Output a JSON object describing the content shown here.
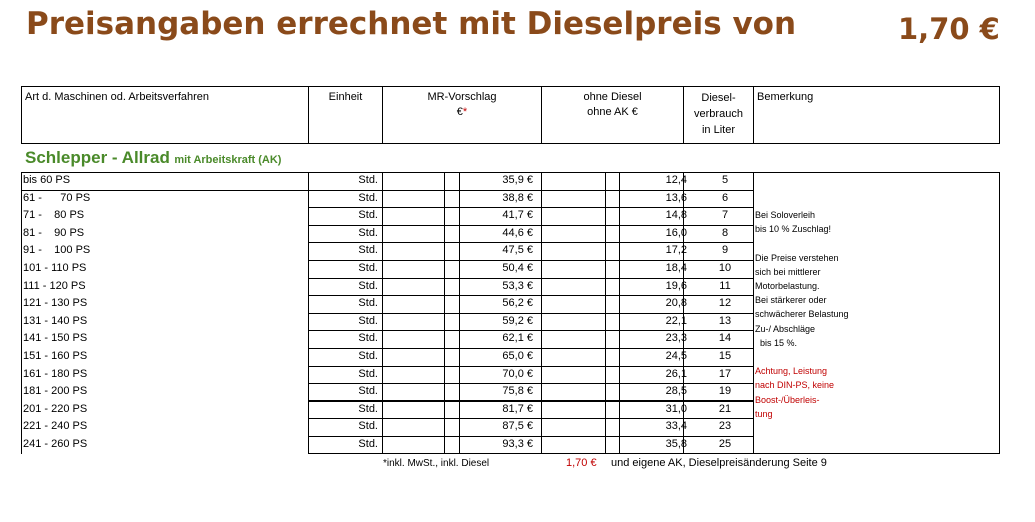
{
  "title": "Preisangaben errechnet mit Dieselpreis von",
  "diesel_price": "1,70 €",
  "header": {
    "machine": "Art d. Maschinen od. Arbeitsverfahren",
    "unit": "Einheit",
    "mr_line1": "MR-Vorschlag",
    "mr_line2_euro": "€",
    "mr_line2_star": "*",
    "ohne_line1": "ohne Diesel",
    "ohne_line2": "ohne AK €",
    "diesel_line1": "Diesel-",
    "diesel_line2": "verbrauch",
    "diesel_line3": "in Liter",
    "remark": "Bemerkung"
  },
  "section": {
    "title": "Schlepper - Allrad",
    "subtitle": "mit Arbeitskraft (AK)"
  },
  "rows": [
    {
      "label": "bis 60 PS",
      "unit": "Std.",
      "mr": "35,9 €",
      "ohne": "12,4",
      "liter": "5"
    },
    {
      "label": "61 -      70 PS",
      "unit": "Std.",
      "mr": "38,8 €",
      "ohne": "13,6",
      "liter": "6"
    },
    {
      "label": "71 -    80 PS",
      "unit": "Std.",
      "mr": "41,7 €",
      "ohne": "14,8",
      "liter": "7"
    },
    {
      "label": "81 -    90 PS",
      "unit": "Std.",
      "mr": "44,6 €",
      "ohne": "16,0",
      "liter": "8"
    },
    {
      "label": "91 -    100 PS",
      "unit": "Std.",
      "mr": "47,5 €",
      "ohne": "17,2",
      "liter": "9"
    },
    {
      "label": "101 - 110 PS",
      "unit": "Std.",
      "mr": "50,4 €",
      "ohne": "18,4",
      "liter": "10"
    },
    {
      "label": "111 - 120 PS",
      "unit": "Std.",
      "mr": "53,3 €",
      "ohne": "19,6",
      "liter": "11"
    },
    {
      "label": "121 - 130 PS",
      "unit": "Std.",
      "mr": "56,2 €",
      "ohne": "20,8",
      "liter": "12"
    },
    {
      "label": "131 - 140 PS",
      "unit": "Std.",
      "mr": "59,2 €",
      "ohne": "22,1",
      "liter": "13"
    },
    {
      "label": "141 - 150 PS",
      "unit": "Std.",
      "mr": "62,1 €",
      "ohne": "23,3",
      "liter": "14"
    },
    {
      "label": "151 - 160 PS",
      "unit": "Std.",
      "mr": "65,0 €",
      "ohne": "24,5",
      "liter": "15"
    },
    {
      "label": "161 - 180 PS",
      "unit": "Std.",
      "mr": "70,0 €",
      "ohne": "26,1",
      "liter": "17"
    },
    {
      "label": "181 - 200 PS",
      "unit": "Std.",
      "mr": "75,8 €",
      "ohne": "28,5",
      "liter": "19"
    },
    {
      "label": "201 - 220 PS",
      "unit": "Std.",
      "mr": "81,7 €",
      "ohne": "31,0",
      "liter": "21"
    },
    {
      "label": "221 - 240 PS",
      "unit": "Std.",
      "mr": "87,5 €",
      "ohne": "33,4",
      "liter": "23"
    },
    {
      "label": "241 - 260 PS",
      "unit": "Std.",
      "mr": "93,3 €",
      "ohne": "35,8",
      "liter": "25"
    }
  ],
  "notes": [
    {
      "text": "Bei Soloverleih",
      "red": false
    },
    {
      "text": "bis 10 % Zuschlag!",
      "red": false
    },
    {
      "text": "",
      "red": false
    },
    {
      "text": "Die Preise verstehen",
      "red": false
    },
    {
      "text": "sich bei mittlerer",
      "red": false
    },
    {
      "text": "Motorbelastung.",
      "red": false
    },
    {
      "text": "Bei stärkerer oder",
      "red": false
    },
    {
      "text": "schwächerer Belastung",
      "red": false
    },
    {
      "text": "Zu-/ Abschläge",
      "red": false
    },
    {
      "text": "  bis 15 %.",
      "red": false
    },
    {
      "text": "",
      "red": false
    },
    {
      "text": "Achtung, Leistung",
      "red": true
    },
    {
      "text": "nach DIN-PS, keine",
      "red": true
    },
    {
      "text": "Boost-/Überleis-",
      "red": true
    },
    {
      "text": "tung",
      "red": true
    }
  ],
  "footer": {
    "left": "*inkl. MwSt., inkl. Diesel",
    "price": "1,70 €",
    "right": "und eigene AK, Dieselpreisänderung Seite 9"
  },
  "colors": {
    "title": "#8a4a1a",
    "section": "#4a8a2a",
    "red": "#c00000"
  }
}
